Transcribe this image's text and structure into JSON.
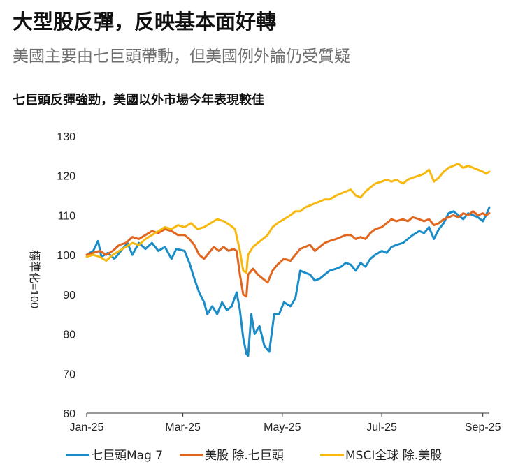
{
  "header": {
    "title": "大型股反彈，反映基本面好轉",
    "subtitle": "美國主要由七巨頭帶動，但美國例外論仍受質疑"
  },
  "chart_data": {
    "type": "line",
    "title": "七巨頭反彈強勁，美國以外市場今年表現較佳",
    "xlabel": "",
    "ylabel": "標準化=100",
    "ylim": [
      60,
      130
    ],
    "yticks": [
      60,
      70,
      80,
      90,
      100,
      110,
      120,
      130
    ],
    "xlim": [
      "2025-01-01",
      "2025-09-05"
    ],
    "xticks": [
      {
        "date": "2025-01-01",
        "label": "Jan-25"
      },
      {
        "date": "2025-03-01",
        "label": "Mar-25"
      },
      {
        "date": "2025-05-01",
        "label": "May-25"
      },
      {
        "date": "2025-07-01",
        "label": "Jul-25"
      },
      {
        "date": "2025-09-01",
        "label": "Sep-25"
      }
    ],
    "grid": false,
    "legend_position": "bottom",
    "series": [
      {
        "name": "七巨頭Mag 7",
        "color": "#1a8dc9",
        "points": [
          [
            "2025-01-01",
            100
          ],
          [
            "2025-01-05",
            101
          ],
          [
            "2025-01-08",
            103.5
          ],
          [
            "2025-01-10",
            99.5
          ],
          [
            "2025-01-14",
            100.5
          ],
          [
            "2025-01-18",
            99
          ],
          [
            "2025-01-22",
            101
          ],
          [
            "2025-01-26",
            103
          ],
          [
            "2025-01-29",
            100
          ],
          [
            "2025-02-02",
            103
          ],
          [
            "2025-02-06",
            101.5
          ],
          [
            "2025-02-10",
            103
          ],
          [
            "2025-02-14",
            101
          ],
          [
            "2025-02-18",
            102
          ],
          [
            "2025-02-22",
            99
          ],
          [
            "2025-02-25",
            101.5
          ],
          [
            "2025-03-02",
            101
          ],
          [
            "2025-03-05",
            98
          ],
          [
            "2025-03-08",
            94
          ],
          [
            "2025-03-11",
            90.5
          ],
          [
            "2025-03-14",
            88
          ],
          [
            "2025-03-16",
            85
          ],
          [
            "2025-03-19",
            87
          ],
          [
            "2025-03-22",
            85
          ],
          [
            "2025-03-25",
            88
          ],
          [
            "2025-03-28",
            86
          ],
          [
            "2025-03-31",
            87
          ],
          [
            "2025-04-03",
            90.5
          ],
          [
            "2025-04-05",
            86
          ],
          [
            "2025-04-07",
            79
          ],
          [
            "2025-04-09",
            75
          ],
          [
            "2025-04-10",
            74.5
          ],
          [
            "2025-04-12",
            85
          ],
          [
            "2025-04-14",
            80
          ],
          [
            "2025-04-17",
            82
          ],
          [
            "2025-04-20",
            77
          ],
          [
            "2025-04-23",
            75.5
          ],
          [
            "2025-04-26",
            85
          ],
          [
            "2025-04-29",
            85
          ],
          [
            "2025-05-02",
            88
          ],
          [
            "2025-05-06",
            87
          ],
          [
            "2025-05-09",
            89
          ],
          [
            "2025-05-12",
            96
          ],
          [
            "2025-05-15",
            95.5
          ],
          [
            "2025-05-18",
            95
          ],
          [
            "2025-05-21",
            93.5
          ],
          [
            "2025-05-24",
            94
          ],
          [
            "2025-05-27",
            95
          ],
          [
            "2025-05-30",
            96
          ],
          [
            "2025-06-03",
            96.5
          ],
          [
            "2025-06-06",
            97
          ],
          [
            "2025-06-09",
            98
          ],
          [
            "2025-06-12",
            97.5
          ],
          [
            "2025-06-15",
            96
          ],
          [
            "2025-06-18",
            98
          ],
          [
            "2025-06-21",
            97
          ],
          [
            "2025-06-24",
            99
          ],
          [
            "2025-06-27",
            100
          ],
          [
            "2025-07-01",
            101
          ],
          [
            "2025-07-04",
            100.5
          ],
          [
            "2025-07-07",
            102
          ],
          [
            "2025-07-10",
            102.5
          ],
          [
            "2025-07-14",
            103
          ],
          [
            "2025-07-17",
            104
          ],
          [
            "2025-07-20",
            105
          ],
          [
            "2025-07-24",
            106
          ],
          [
            "2025-07-27",
            105.5
          ],
          [
            "2025-07-30",
            107
          ],
          [
            "2025-08-02",
            104
          ],
          [
            "2025-08-05",
            106.5
          ],
          [
            "2025-08-08",
            108
          ],
          [
            "2025-08-11",
            110.5
          ],
          [
            "2025-08-14",
            111
          ],
          [
            "2025-08-17",
            110
          ],
          [
            "2025-08-20",
            109
          ],
          [
            "2025-08-23",
            110.5
          ],
          [
            "2025-08-26",
            110
          ],
          [
            "2025-08-29",
            109.5
          ],
          [
            "2025-09-01",
            108.5
          ],
          [
            "2025-09-03",
            110
          ],
          [
            "2025-09-05",
            112
          ]
        ]
      },
      {
        "name": "美股 除.七巨頭",
        "color": "#e1661e",
        "points": [
          [
            "2025-01-01",
            100
          ],
          [
            "2025-01-05",
            100.5
          ],
          [
            "2025-01-09",
            101
          ],
          [
            "2025-01-13",
            100
          ],
          [
            "2025-01-17",
            101
          ],
          [
            "2025-01-21",
            102.5
          ],
          [
            "2025-01-25",
            103
          ],
          [
            "2025-01-29",
            104.5
          ],
          [
            "2025-02-02",
            104
          ],
          [
            "2025-02-06",
            105
          ],
          [
            "2025-02-10",
            106
          ],
          [
            "2025-02-14",
            105.5
          ],
          [
            "2025-02-18",
            106.5
          ],
          [
            "2025-02-22",
            106
          ],
          [
            "2025-02-26",
            105
          ],
          [
            "2025-03-02",
            105
          ],
          [
            "2025-03-05",
            104
          ],
          [
            "2025-03-08",
            102.5
          ],
          [
            "2025-03-11",
            100
          ],
          [
            "2025-03-14",
            99
          ],
          [
            "2025-03-17",
            100.5
          ],
          [
            "2025-03-20",
            102
          ],
          [
            "2025-03-23",
            101
          ],
          [
            "2025-03-26",
            102
          ],
          [
            "2025-03-29",
            101
          ],
          [
            "2025-04-01",
            101.5
          ],
          [
            "2025-04-03",
            101
          ],
          [
            "2025-04-05",
            95
          ],
          [
            "2025-04-07",
            90
          ],
          [
            "2025-04-09",
            89.5
          ],
          [
            "2025-04-10",
            95
          ],
          [
            "2025-04-13",
            96.5
          ],
          [
            "2025-04-16",
            95
          ],
          [
            "2025-04-19",
            94
          ],
          [
            "2025-04-22",
            93
          ],
          [
            "2025-04-25",
            96
          ],
          [
            "2025-04-28",
            97.5
          ],
          [
            "2025-05-02",
            99
          ],
          [
            "2025-05-06",
            98.5
          ],
          [
            "2025-05-09",
            100
          ],
          [
            "2025-05-12",
            101.5
          ],
          [
            "2025-05-15",
            102
          ],
          [
            "2025-05-18",
            102.5
          ],
          [
            "2025-05-21",
            101
          ],
          [
            "2025-05-24",
            102
          ],
          [
            "2025-05-27",
            103
          ],
          [
            "2025-05-30",
            103.5
          ],
          [
            "2025-06-03",
            104
          ],
          [
            "2025-06-06",
            104.5
          ],
          [
            "2025-06-09",
            105
          ],
          [
            "2025-06-12",
            105
          ],
          [
            "2025-06-15",
            104
          ],
          [
            "2025-06-18",
            104.5
          ],
          [
            "2025-06-21",
            104
          ],
          [
            "2025-06-24",
            105.5
          ],
          [
            "2025-06-27",
            106.5
          ],
          [
            "2025-07-01",
            107
          ],
          [
            "2025-07-04",
            108
          ],
          [
            "2025-07-07",
            109
          ],
          [
            "2025-07-10",
            108.5
          ],
          [
            "2025-07-14",
            109
          ],
          [
            "2025-07-17",
            108.5
          ],
          [
            "2025-07-20",
            109.5
          ],
          [
            "2025-07-24",
            109
          ],
          [
            "2025-07-27",
            108.5
          ],
          [
            "2025-07-30",
            109
          ],
          [
            "2025-08-02",
            107.5
          ],
          [
            "2025-08-05",
            108
          ],
          [
            "2025-08-08",
            109
          ],
          [
            "2025-08-11",
            109.5
          ],
          [
            "2025-08-14",
            110
          ],
          [
            "2025-08-17",
            109.5
          ],
          [
            "2025-08-20",
            110.5
          ],
          [
            "2025-08-23",
            110
          ],
          [
            "2025-08-26",
            111
          ],
          [
            "2025-08-29",
            110
          ],
          [
            "2025-09-01",
            110.5
          ],
          [
            "2025-09-03",
            110
          ],
          [
            "2025-09-05",
            110.5
          ]
        ]
      },
      {
        "name": "MSCI全球 除.美股",
        "color": "#f7b90f",
        "points": [
          [
            "2025-01-01",
            99.5
          ],
          [
            "2025-01-05",
            100
          ],
          [
            "2025-01-09",
            99.5
          ],
          [
            "2025-01-13",
            98.5
          ],
          [
            "2025-01-17",
            100
          ],
          [
            "2025-01-21",
            101
          ],
          [
            "2025-01-25",
            102
          ],
          [
            "2025-01-29",
            103
          ],
          [
            "2025-02-02",
            102.5
          ],
          [
            "2025-02-06",
            104
          ],
          [
            "2025-02-10",
            105
          ],
          [
            "2025-02-14",
            106
          ],
          [
            "2025-02-18",
            107
          ],
          [
            "2025-02-22",
            106.5
          ],
          [
            "2025-02-26",
            107.5
          ],
          [
            "2025-03-02",
            107
          ],
          [
            "2025-03-06",
            108
          ],
          [
            "2025-03-10",
            106.5
          ],
          [
            "2025-03-14",
            107
          ],
          [
            "2025-03-18",
            108
          ],
          [
            "2025-03-22",
            109
          ],
          [
            "2025-03-26",
            108.5
          ],
          [
            "2025-03-30",
            107.5
          ],
          [
            "2025-04-02",
            106.5
          ],
          [
            "2025-04-05",
            101
          ],
          [
            "2025-04-07",
            96
          ],
          [
            "2025-04-09",
            95.5
          ],
          [
            "2025-04-10",
            100
          ],
          [
            "2025-04-13",
            102
          ],
          [
            "2025-04-16",
            103
          ],
          [
            "2025-04-19",
            104
          ],
          [
            "2025-04-22",
            105
          ],
          [
            "2025-04-25",
            107
          ],
          [
            "2025-04-28",
            108
          ],
          [
            "2025-05-02",
            109
          ],
          [
            "2025-05-06",
            110
          ],
          [
            "2025-05-09",
            111
          ],
          [
            "2025-05-12",
            111
          ],
          [
            "2025-05-15",
            112
          ],
          [
            "2025-05-18",
            112.5
          ],
          [
            "2025-05-21",
            113
          ],
          [
            "2025-05-24",
            113.5
          ],
          [
            "2025-05-27",
            114
          ],
          [
            "2025-05-30",
            114
          ],
          [
            "2025-06-03",
            115
          ],
          [
            "2025-06-06",
            115.5
          ],
          [
            "2025-06-09",
            116
          ],
          [
            "2025-06-12",
            116.5
          ],
          [
            "2025-06-15",
            115
          ],
          [
            "2025-06-18",
            114.5
          ],
          [
            "2025-06-21",
            116
          ],
          [
            "2025-06-24",
            117
          ],
          [
            "2025-06-27",
            118
          ],
          [
            "2025-07-01",
            118.5
          ],
          [
            "2025-07-04",
            119
          ],
          [
            "2025-07-07",
            118.5
          ],
          [
            "2025-07-10",
            119
          ],
          [
            "2025-07-14",
            118
          ],
          [
            "2025-07-17",
            119
          ],
          [
            "2025-07-20",
            119.5
          ],
          [
            "2025-07-24",
            120
          ],
          [
            "2025-07-27",
            120.5
          ],
          [
            "2025-07-30",
            121.5
          ],
          [
            "2025-08-02",
            118.5
          ],
          [
            "2025-08-05",
            119.5
          ],
          [
            "2025-08-08",
            121
          ],
          [
            "2025-08-11",
            122
          ],
          [
            "2025-08-14",
            122.5
          ],
          [
            "2025-08-17",
            123
          ],
          [
            "2025-08-20",
            122
          ],
          [
            "2025-08-23",
            122.5
          ],
          [
            "2025-08-26",
            122
          ],
          [
            "2025-08-29",
            121.5
          ],
          [
            "2025-09-01",
            121
          ],
          [
            "2025-09-03",
            120.5
          ],
          [
            "2025-09-05",
            121
          ]
        ]
      }
    ]
  }
}
